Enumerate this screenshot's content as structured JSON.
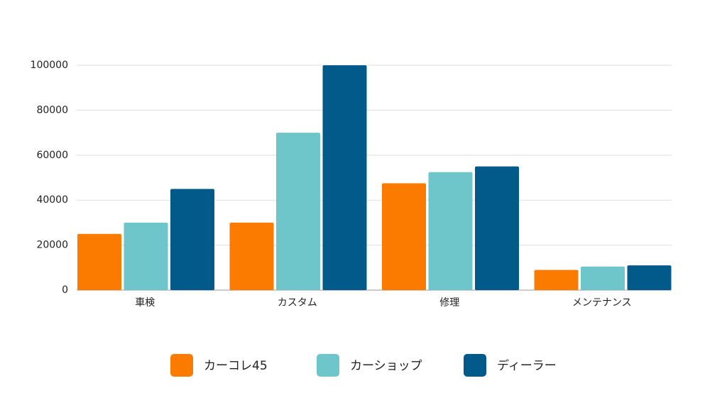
{
  "chart_data": {
    "type": "bar",
    "categories": [
      "車検",
      "カスタム",
      "修理",
      "メンテナンス"
    ],
    "series": [
      {
        "name": "カーコレ45",
        "color": "#fa7b00",
        "values": [
          25000,
          30000,
          47500,
          9000
        ]
      },
      {
        "name": "カーショップ",
        "color": "#6ec6ca",
        "values": [
          30000,
          70000,
          52500,
          10500
        ]
      },
      {
        "name": "ディーラー",
        "color": "#015a8a",
        "values": [
          45000,
          100000,
          55000,
          11000
        ]
      }
    ],
    "ylim": [
      0,
      100000
    ],
    "yticks": [
      0,
      20000,
      40000,
      60000,
      80000,
      100000
    ],
    "grid": true,
    "legend": "bottom"
  }
}
